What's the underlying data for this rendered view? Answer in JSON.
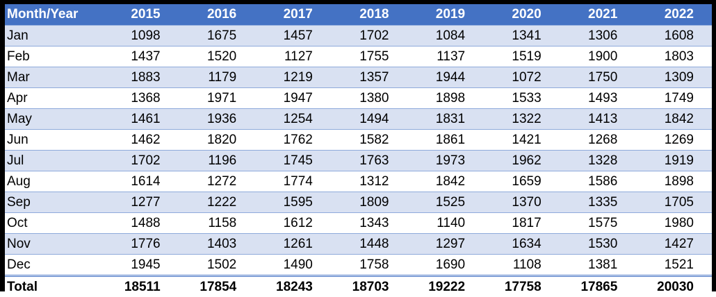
{
  "table": {
    "header_label": "Month/Year",
    "years": [
      "2015",
      "2016",
      "2017",
      "2018",
      "2019",
      "2020",
      "2021",
      "2022"
    ],
    "rows": [
      {
        "month": "Jan",
        "values": [
          "1098",
          "1675",
          "1457",
          "1702",
          "1084",
          "1341",
          "1306",
          "1608"
        ]
      },
      {
        "month": "Feb",
        "values": [
          "1437",
          "1520",
          "1127",
          "1755",
          "1137",
          "1519",
          "1900",
          "1803"
        ]
      },
      {
        "month": "Mar",
        "values": [
          "1883",
          "1179",
          "1219",
          "1357",
          "1944",
          "1072",
          "1750",
          "1309"
        ]
      },
      {
        "month": "Apr",
        "values": [
          "1368",
          "1971",
          "1947",
          "1380",
          "1898",
          "1533",
          "1493",
          "1749"
        ]
      },
      {
        "month": "May",
        "values": [
          "1461",
          "1936",
          "1254",
          "1494",
          "1831",
          "1322",
          "1413",
          "1842"
        ]
      },
      {
        "month": "Jun",
        "values": [
          "1462",
          "1820",
          "1762",
          "1582",
          "1861",
          "1421",
          "1268",
          "1269"
        ]
      },
      {
        "month": "Jul",
        "values": [
          "1702",
          "1196",
          "1745",
          "1763",
          "1973",
          "1962",
          "1328",
          "1919"
        ]
      },
      {
        "month": "Aug",
        "values": [
          "1614",
          "1272",
          "1774",
          "1312",
          "1842",
          "1659",
          "1586",
          "1898"
        ]
      },
      {
        "month": "Sep",
        "values": [
          "1277",
          "1222",
          "1595",
          "1809",
          "1525",
          "1370",
          "1335",
          "1705"
        ]
      },
      {
        "month": "Oct",
        "values": [
          "1488",
          "1158",
          "1612",
          "1343",
          "1140",
          "1817",
          "1575",
          "1980"
        ]
      },
      {
        "month": "Nov",
        "values": [
          "1776",
          "1403",
          "1261",
          "1448",
          "1297",
          "1634",
          "1530",
          "1427"
        ]
      },
      {
        "month": "Dec",
        "values": [
          "1945",
          "1502",
          "1490",
          "1758",
          "1690",
          "1108",
          "1381",
          "1521"
        ]
      }
    ],
    "total": {
      "label": "Total",
      "values": [
        "18511",
        "17854",
        "18243",
        "18703",
        "19222",
        "17758",
        "17865",
        "20030"
      ]
    }
  },
  "colors": {
    "header_bg": "#4472c4",
    "header_text": "#ffffff",
    "band_row": "#d9e1f2",
    "row_border": "#8eaadb",
    "frame": "#000000"
  }
}
